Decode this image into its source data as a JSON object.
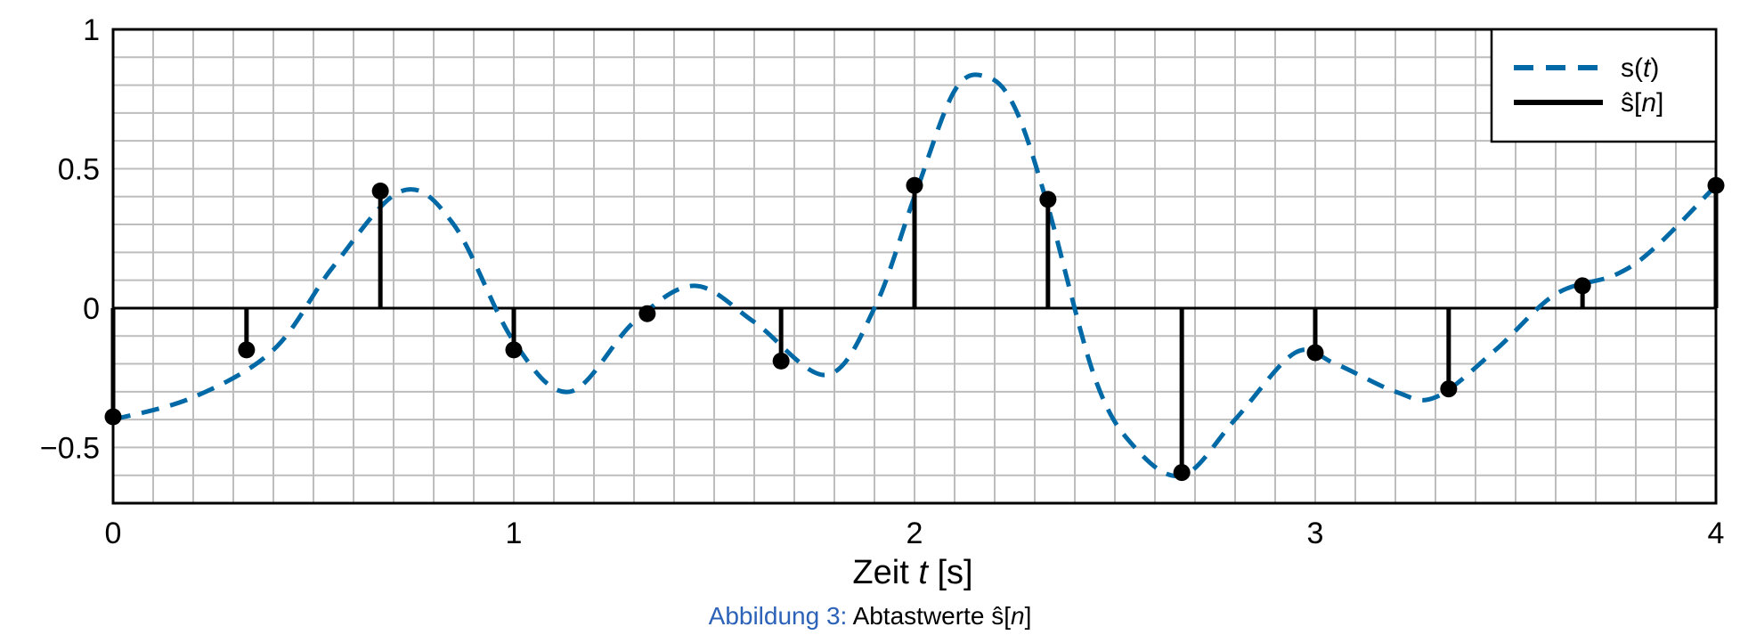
{
  "chart_data": {
    "type": "stem",
    "xlabel_prefix": "Zeit ",
    "xlabel_var": "t",
    "xlabel_unit": " [s]",
    "xlim": [
      0,
      4
    ],
    "ylim": [
      -0.7,
      1
    ],
    "x_ticks": [
      0,
      1,
      2,
      3,
      4
    ],
    "x_tick_labels": [
      "0",
      "1",
      "2",
      "3",
      "4"
    ],
    "y_ticks": [
      -0.5,
      0,
      0.5,
      1
    ],
    "y_tick_labels": [
      "−0.5",
      "0",
      "0.5",
      "1"
    ],
    "grid": true,
    "legend_position": "top-right",
    "colors": {
      "continuous": "#0069a6",
      "stems": "#000000",
      "grid": "#bdbdbd",
      "caption_prefix": "#2c62b8"
    },
    "series": [
      {
        "name": "s(t)",
        "style": "dashed",
        "x": [
          0,
          0.2,
          0.4,
          0.55,
          0.72,
          0.85,
          1.0,
          1.14,
          1.3,
          1.45,
          1.6,
          1.78,
          1.9,
          2.0,
          2.1,
          2.18,
          2.25,
          2.33,
          2.45,
          2.55,
          2.67,
          2.8,
          2.95,
          3.05,
          3.2,
          3.3,
          3.45,
          3.6,
          3.75,
          3.85,
          4.0
        ],
        "y": [
          -0.4,
          -0.32,
          -0.15,
          0.15,
          0.42,
          0.3,
          -0.12,
          -0.3,
          -0.05,
          0.08,
          -0.05,
          -0.24,
          0.0,
          0.4,
          0.78,
          0.83,
          0.72,
          0.38,
          -0.25,
          -0.5,
          -0.6,
          -0.4,
          -0.16,
          -0.2,
          -0.3,
          -0.32,
          -0.15,
          0.05,
          0.12,
          0.22,
          0.44
        ]
      },
      {
        "name": "ŝ[n]",
        "style": "stem",
        "x": [
          0,
          0.333,
          0.667,
          1.0,
          1.333,
          1.667,
          2.0,
          2.333,
          2.667,
          3.0,
          3.333,
          3.667,
          4.0
        ],
        "y": [
          -0.39,
          -0.15,
          0.42,
          -0.15,
          -0.02,
          -0.19,
          0.44,
          0.39,
          -0.59,
          -0.16,
          -0.29,
          0.08,
          0.44
        ]
      }
    ],
    "legend": [
      {
        "prefix": "s(",
        "var": "t",
        "suffix": ")"
      },
      {
        "prefix": "ŝ[",
        "var": "n",
        "suffix": "]"
      }
    ]
  },
  "caption": {
    "prefix": "Abbildung 3:",
    "text": "Abtastwerte ",
    "var_prefix": "ŝ[",
    "var": "n",
    "var_suffix": "]"
  }
}
